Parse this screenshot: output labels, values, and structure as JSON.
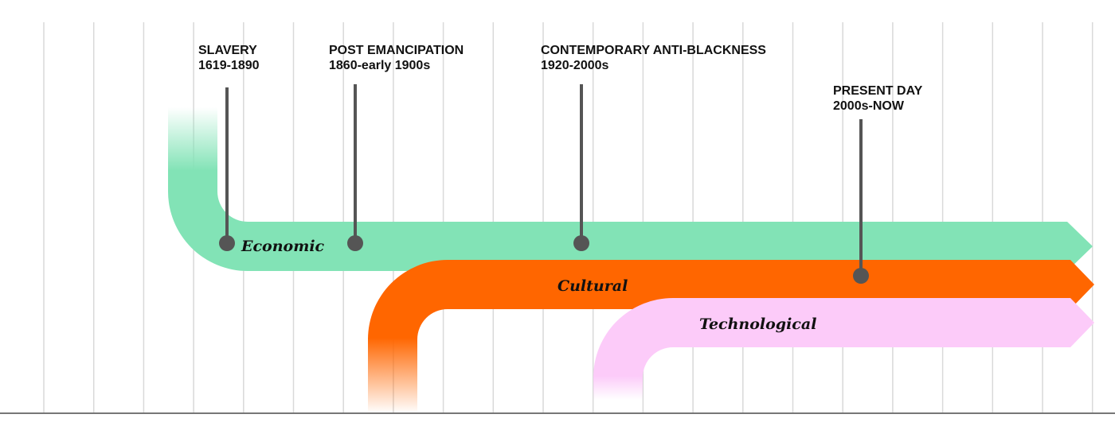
{
  "eras": [
    {
      "title": "SLAVERY",
      "dates": "1619-1890"
    },
    {
      "title": "POST EMANCIPATION",
      "dates": "1860-early 1900s"
    },
    {
      "title": "CONTEMPORARY ANTI-BLACKNESS",
      "dates": "1920-2000s"
    },
    {
      "title": "PRESENT DAY",
      "dates": "2000s-NOW"
    }
  ],
  "bands": [
    {
      "label": "Economic",
      "color": "#82e3b6"
    },
    {
      "label": "Cultural",
      "color": "#ff6600"
    },
    {
      "label": "Technological",
      "color": "#fccbf9"
    }
  ],
  "colors": {
    "grid": "#d9d9d9",
    "pin": "#555555",
    "axis": "#777777"
  }
}
